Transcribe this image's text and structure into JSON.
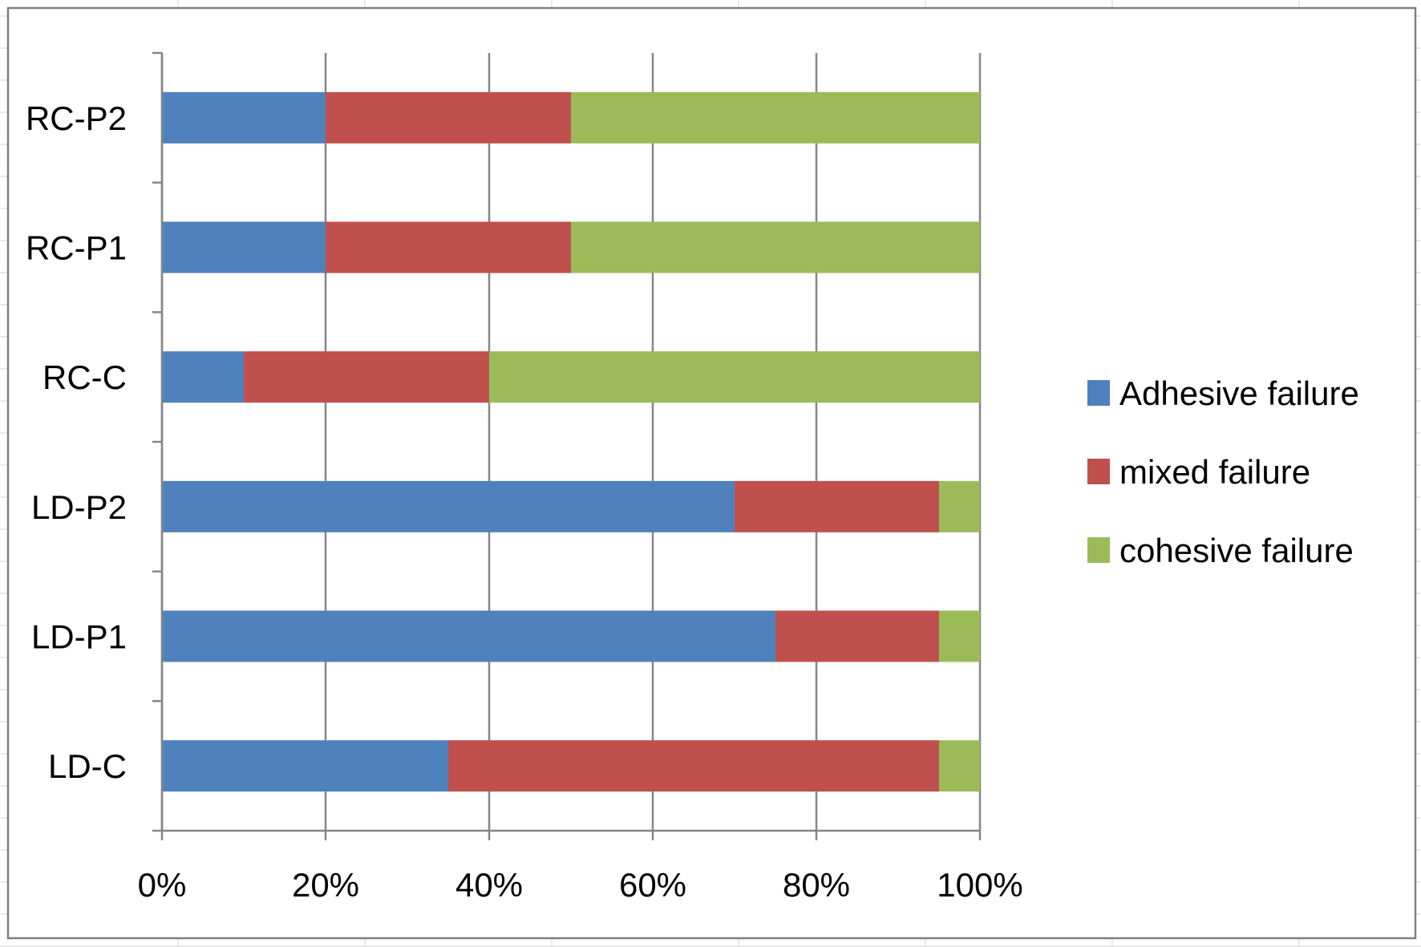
{
  "chart_data": {
    "type": "bar",
    "orientation": "horizontal",
    "stacked": "percent",
    "categories": [
      "LD-C",
      "LD-P1",
      "LD-P2",
      "RC-C",
      "RC-P1",
      "RC-P2"
    ],
    "series": [
      {
        "name": "Adhesive failure",
        "color": "#4F81BD",
        "values": [
          35,
          75,
          70,
          10,
          20,
          20
        ]
      },
      {
        "name": "mixed failure",
        "color": "#C0504D",
        "values": [
          60,
          20,
          25,
          30,
          30,
          30
        ]
      },
      {
        "name": "cohesive failure",
        "color": "#9BBB59",
        "values": [
          5,
          5,
          5,
          60,
          50,
          50
        ]
      }
    ],
    "xlim": [
      0,
      100
    ],
    "x_ticks": [
      "0%",
      "20%",
      "40%",
      "60%",
      "80%",
      "100%"
    ],
    "grid": "vertical",
    "legend_position": "right"
  }
}
